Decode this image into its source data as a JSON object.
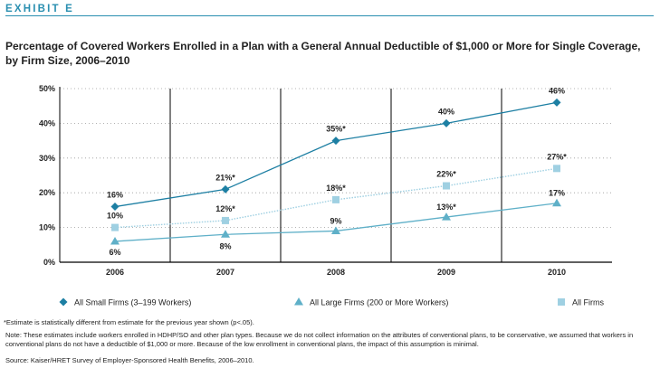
{
  "header": {
    "exhibit": "EXHIBIT E",
    "title": "Percentage of Covered Workers Enrolled in a Plan with a General Annual Deductible of $1,000 or More for Single Coverage, by Firm Size, 2006–2010"
  },
  "colors": {
    "accent": "#2a8fb0",
    "small_firms": "#1d7fa3",
    "large_firms": "#5fb0c8",
    "all_firms": "#9fd0e2"
  },
  "chart_data": {
    "type": "line",
    "categories": [
      "2006",
      "2007",
      "2008",
      "2009",
      "2010"
    ],
    "ylim": [
      0,
      50
    ],
    "y_ticks": [
      "0%",
      "10%",
      "20%",
      "30%",
      "40%",
      "50%"
    ],
    "grid": "dotted horizontal gridlines, solid vertical separators",
    "legend_position": "bottom",
    "series": [
      {
        "name": "All Small Firms (3–199 Workers)",
        "marker": "diamond",
        "values": [
          16,
          21,
          35,
          40,
          46
        ],
        "labels": [
          "16%",
          "21%*",
          "35%*",
          "40%",
          "46%"
        ]
      },
      {
        "name": "All Large Firms (200 or More Workers)",
        "marker": "triangle",
        "values": [
          6,
          8,
          9,
          13,
          17
        ],
        "labels": [
          "6%",
          "8%",
          "9%",
          "13%*",
          "17%"
        ]
      },
      {
        "name": "All Firms",
        "marker": "square",
        "values": [
          10,
          12,
          18,
          22,
          27
        ],
        "labels": [
          "10%",
          "12%*",
          "18%*",
          "22%*",
          "27%*"
        ]
      }
    ]
  },
  "footer": {
    "footnote": "*Estimate is statistically different from estimate for the previous year shown (p<.05).",
    "note": "Note: These estimates include workers enrolled in HDHP/SO and other plan types. Because we do not collect information on the attributes of conventional plans, to be conservative, we assumed that workers in conventional plans do not have a deductible of $1,000 or more. Because of the low enrollment in conventional plans, the impact of this assumption is minimal.",
    "source": "Source: Kaiser/HRET Survey of Employer-Sponsored Health Benefits, 2006–2010."
  }
}
